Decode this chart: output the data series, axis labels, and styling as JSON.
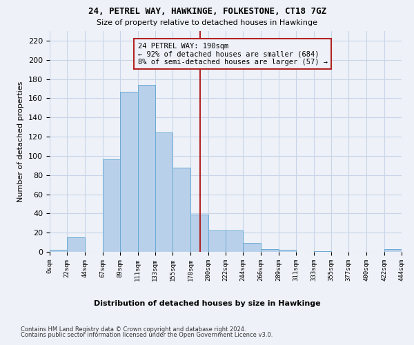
{
  "title": "24, PETREL WAY, HAWKINGE, FOLKESTONE, CT18 7GZ",
  "subtitle": "Size of property relative to detached houses in Hawkinge",
  "xlabel_label": "Distribution of detached houses by size in Hawkinge",
  "ylabel": "Number of detached properties",
  "property_size": 190,
  "annotation_line1": "24 PETREL WAY: 190sqm",
  "annotation_line2": "← 92% of detached houses are smaller (684)",
  "annotation_line3": "8% of semi-detached houses are larger (57) →",
  "footer1": "Contains HM Land Registry data © Crown copyright and database right 2024.",
  "footer2": "Contains public sector information licensed under the Open Government Licence v3.0.",
  "bin_edges": [
    0,
    22,
    44,
    67,
    89,
    111,
    133,
    155,
    178,
    200,
    222,
    244,
    266,
    289,
    311,
    333,
    355,
    377,
    400,
    422,
    444
  ],
  "bar_heights": [
    2,
    15,
    0,
    96,
    167,
    174,
    124,
    88,
    39,
    22,
    22,
    9,
    3,
    2,
    0,
    1,
    0,
    0,
    0,
    3
  ],
  "bar_color": "#b8d0ea",
  "bar_edge_color": "#6aaad4",
  "vline_color": "#b22222",
  "vline_x": 190,
  "box_facecolor": "#eef2f8",
  "box_edgecolor": "#b22222",
  "grid_color": "#c8d4e8",
  "bg_color": "#eef2f8",
  "ylim": [
    0,
    230
  ],
  "yticks": [
    0,
    20,
    40,
    60,
    80,
    100,
    120,
    140,
    160,
    180,
    200,
    220
  ]
}
